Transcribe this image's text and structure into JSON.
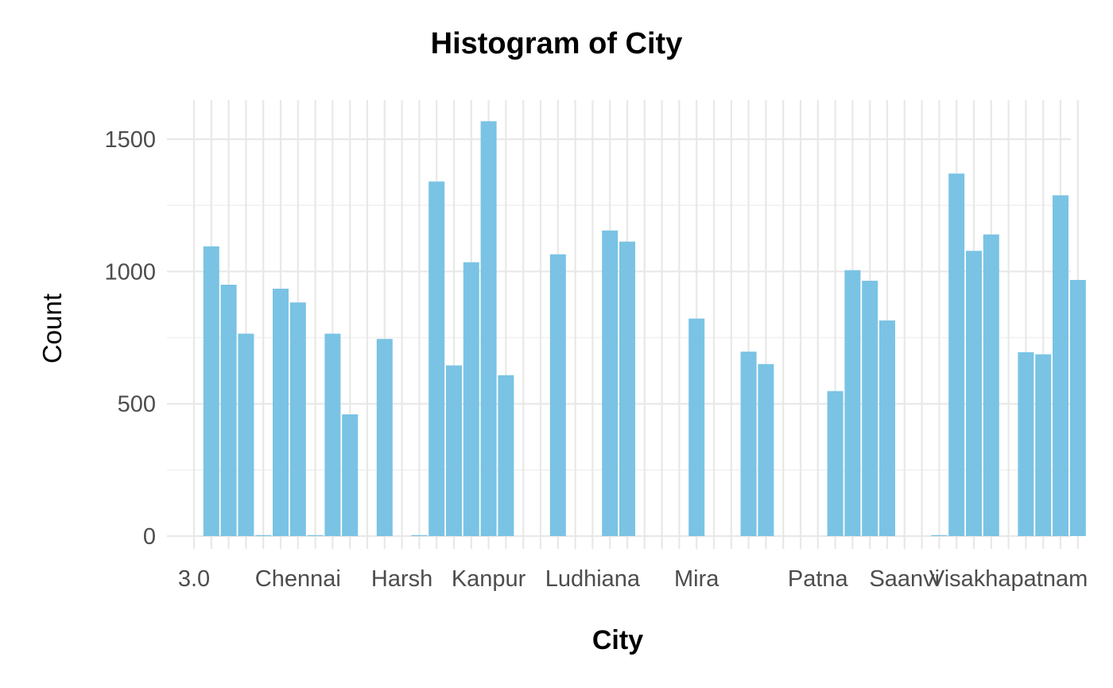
{
  "chart_data": {
    "type": "bar",
    "title": "Histogram of City",
    "xlabel": "City",
    "ylabel": "Count",
    "ylim": [
      0,
      1650
    ],
    "yticks": [
      0,
      500,
      1000,
      1500
    ],
    "ytick_labels": [
      "0",
      "500",
      "1000",
      "1500"
    ],
    "grid": true,
    "bar_color": "#7ac3e4",
    "categories": [
      "3.0",
      "",
      "",
      "",
      "",
      "",
      "Chennai",
      "",
      "",
      "",
      "",
      "",
      "",
      "Harsh",
      "",
      "",
      "",
      "",
      "",
      "Kanpur",
      "",
      "",
      "",
      "",
      "",
      "",
      "Ludhiana",
      "",
      "",
      "",
      "",
      "",
      "Mira",
      "",
      "",
      "",
      "",
      "",
      "",
      "Patna",
      "",
      "",
      "",
      "",
      "Saanvi",
      "",
      "",
      "",
      "Visakhapatnam",
      "",
      "",
      ""
    ],
    "x_tick_labels": [
      {
        "index": 0,
        "label": "3.0"
      },
      {
        "index": 6,
        "label": "Chennai"
      },
      {
        "index": 12,
        "label": "Harsh"
      },
      {
        "index": 17,
        "label": "Kanpur"
      },
      {
        "index": 23,
        "label": "Ludhiana"
      },
      {
        "index": 29,
        "label": "Mira"
      },
      {
        "index": 36,
        "label": "Patna"
      },
      {
        "index": 41,
        "label": "Saanvi"
      },
      {
        "index": 47,
        "label": "Visakhapatnam"
      }
    ],
    "values": [
      0,
      1095,
      950,
      765,
      3,
      935,
      883,
      3,
      765,
      460,
      0,
      745,
      0,
      3,
      1340,
      645,
      1035,
      1568,
      608,
      0,
      0,
      1065,
      0,
      0,
      1155,
      1113,
      0,
      0,
      0,
      822,
      0,
      0,
      697,
      650,
      0,
      0,
      0,
      548,
      1005,
      965,
      815,
      0,
      0,
      3,
      1370,
      1078,
      1140,
      0,
      695,
      687,
      1288,
      968
    ]
  }
}
